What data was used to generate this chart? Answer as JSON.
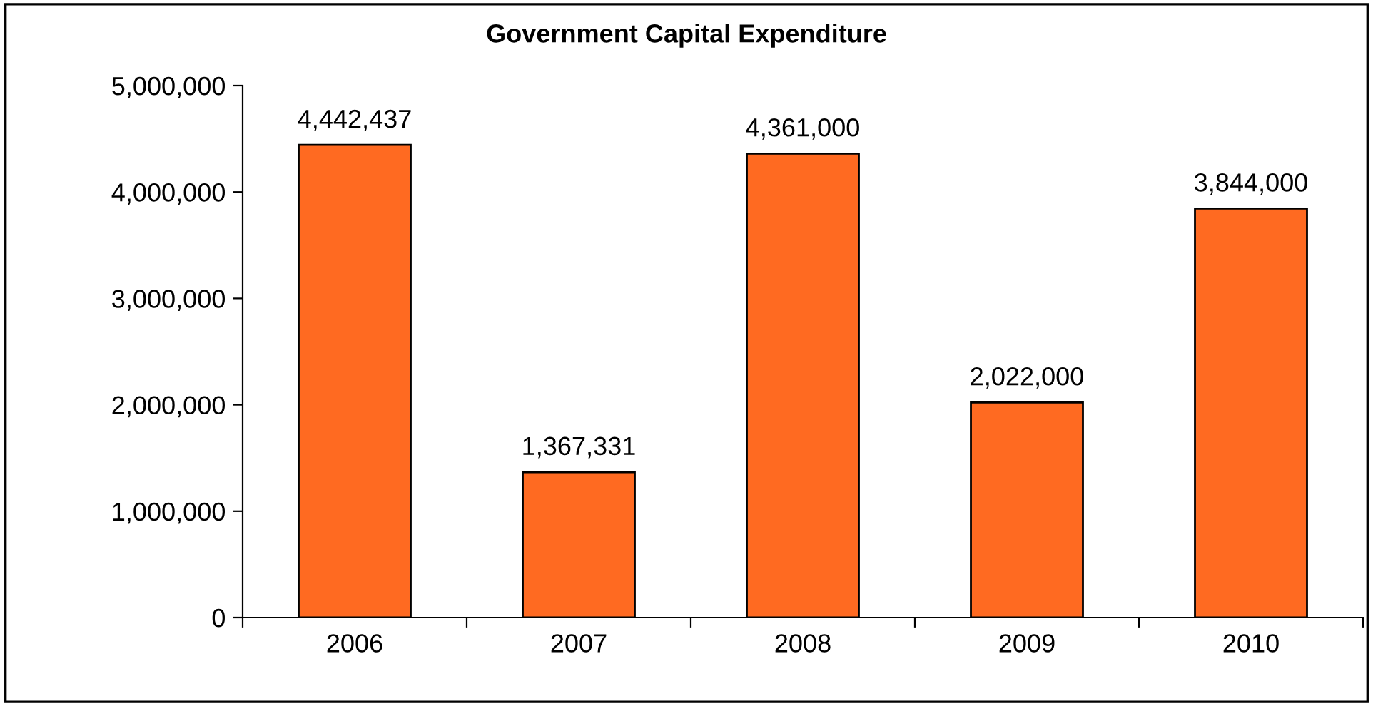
{
  "chart_data": {
    "type": "bar",
    "title": "Government Capital Expenditure",
    "categories": [
      "2006",
      "2007",
      "2008",
      "2009",
      "2010"
    ],
    "values": [
      4442437,
      1367331,
      4361000,
      2022000,
      3844000
    ],
    "color": "#ff6a21",
    "ylim": [
      0,
      5000000
    ],
    "yticks": [
      0,
      {
        "value": 1000000,
        "label": "1,000,000"
      },
      {
        "value": 2000000,
        "label": "2,000,000"
      },
      {
        "value": 3000000,
        "label": "3,000,000"
      },
      {
        "value": 4000000,
        "label": "4,000,000"
      },
      {
        "value": 5000000,
        "label": "5,000,000"
      }
    ],
    "value_labels": [
      "4,442,437",
      "1,367,331",
      "4,361,000",
      "2,022,000",
      "3,844,000"
    ],
    "grid": false,
    "legend": false
  }
}
